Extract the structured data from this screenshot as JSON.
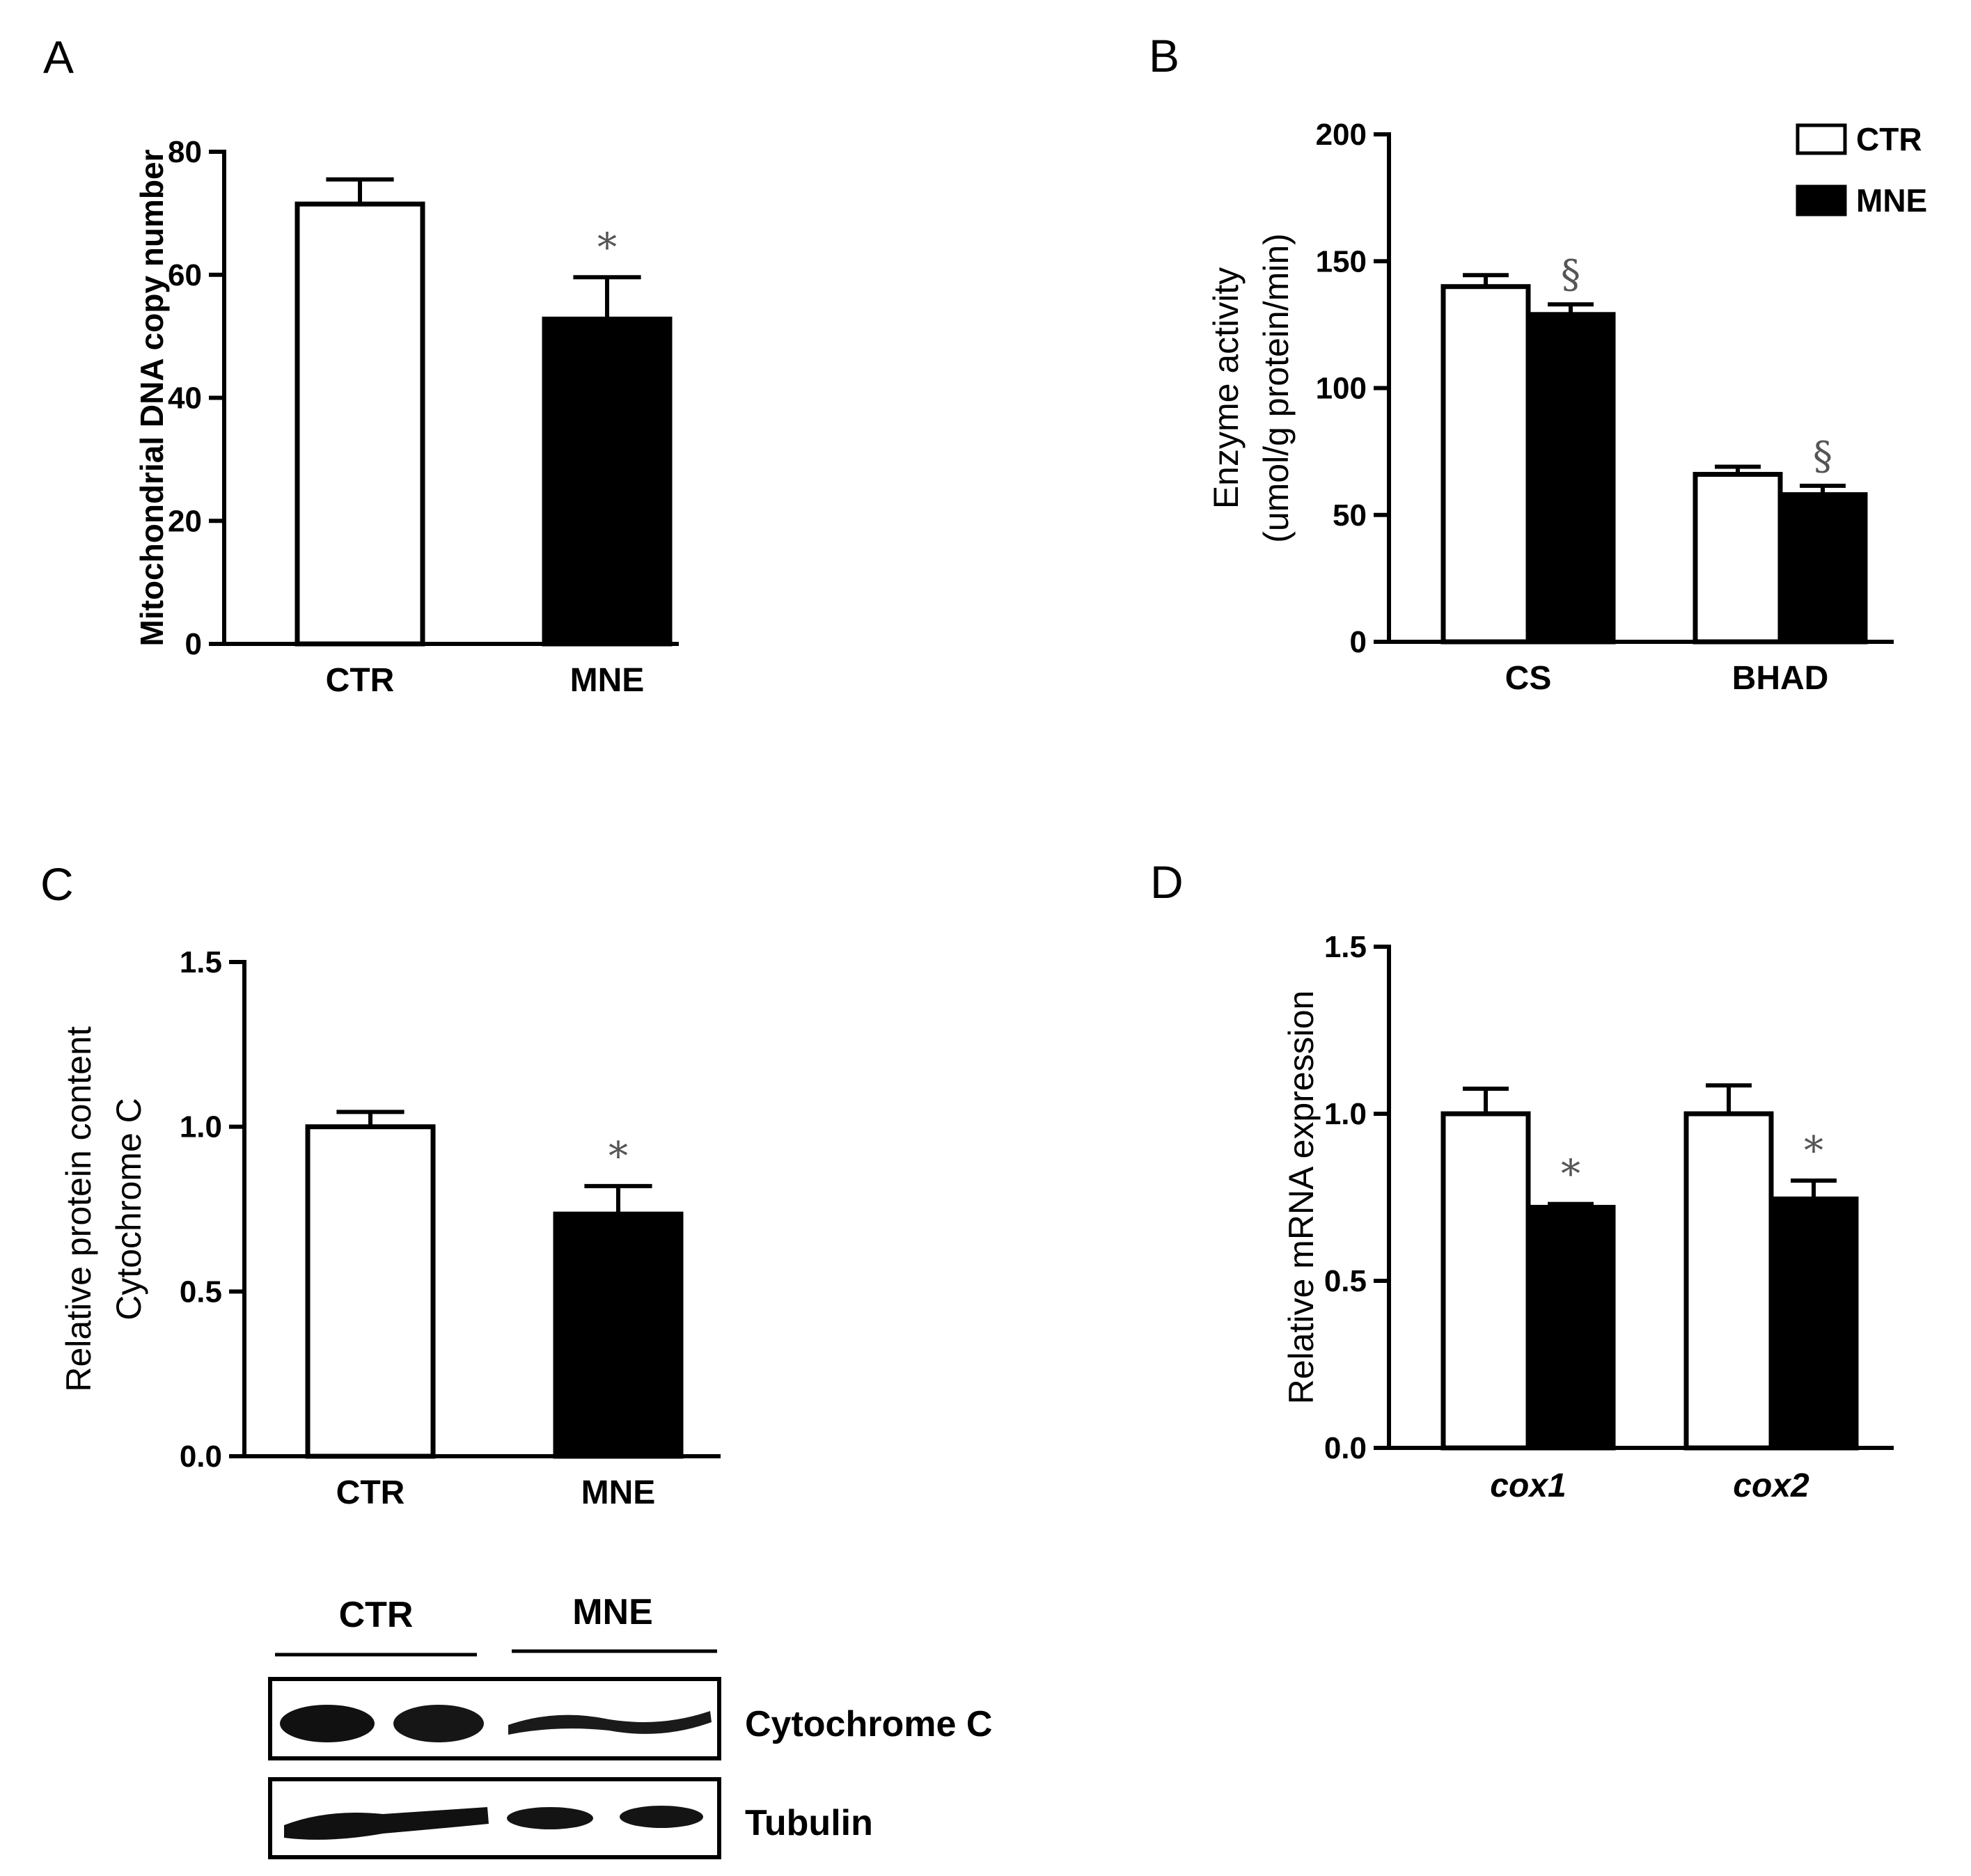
{
  "chart_data": [
    {
      "id": "A",
      "panel_label": "A",
      "type": "bar",
      "categories": [
        "CTR",
        "MNE"
      ],
      "values": [
        71.5,
        52.8
      ],
      "errors": [
        4.0,
        6.8
      ],
      "fills": [
        "#ffffff",
        "#000000"
      ],
      "significance": [
        "",
        "*"
      ],
      "ylabel": [
        "Mitochondrial DNA copy number"
      ],
      "ylim": [
        0,
        80
      ],
      "yticks": [
        0,
        20,
        40,
        60,
        80
      ],
      "ytick_labels": [
        "0",
        "20",
        "40",
        "60",
        "80"
      ],
      "grid": false
    },
    {
      "id": "B",
      "panel_label": "B",
      "type": "bar",
      "categories": [
        "CS",
        "BHAD"
      ],
      "series": [
        {
          "name": "CTR",
          "values": [
            140,
            66
          ],
          "errors": [
            4.5,
            3.0
          ],
          "fill": "#ffffff",
          "significance": [
            "",
            ""
          ]
        },
        {
          "name": "MNE",
          "values": [
            129,
            58
          ],
          "errors": [
            4.0,
            3.5
          ],
          "fill": "#000000",
          "significance": [
            "§",
            "§"
          ]
        }
      ],
      "ylabel": [
        "Enzyme activity",
        "(umol/g protein/min)"
      ],
      "ylim": [
        0,
        200
      ],
      "yticks": [
        0,
        50,
        100,
        150,
        200
      ],
      "ytick_labels": [
        "0",
        "50",
        "100",
        "150",
        "200"
      ],
      "legend": "top-right",
      "grid": false
    },
    {
      "id": "C",
      "panel_label": "C",
      "type": "bar",
      "categories": [
        "CTR",
        "MNE"
      ],
      "values": [
        1.0,
        0.735
      ],
      "errors": [
        0.045,
        0.085
      ],
      "fills": [
        "#ffffff",
        "#000000"
      ],
      "significance": [
        "",
        "*"
      ],
      "ylabel": [
        "Relative protein content",
        "Cytochrome C"
      ],
      "ylim": [
        0,
        1.5
      ],
      "yticks": [
        0,
        0.5,
        1.0,
        1.5
      ],
      "ytick_labels": [
        "0.0",
        "0.5",
        "1.0",
        "1.5"
      ],
      "grid": false
    },
    {
      "id": "D",
      "panel_label": "D",
      "type": "bar",
      "categories": [
        "cox1",
        "cox2"
      ],
      "series": [
        {
          "name": "CTR",
          "values": [
            1.0,
            1.0
          ],
          "errors": [
            0.075,
            0.085
          ],
          "fill": "#ffffff",
          "significance": [
            "",
            ""
          ]
        },
        {
          "name": "MNE",
          "values": [
            0.72,
            0.745
          ],
          "errors": [
            0.01,
            0.055
          ],
          "fill": "#000000",
          "significance": [
            "*",
            "*"
          ]
        }
      ],
      "ylabel": [
        "Relative mRNA expression"
      ],
      "ylim": [
        0,
        1.5
      ],
      "yticks": [
        0,
        0.5,
        1.0,
        1.5
      ],
      "ytick_labels": [
        "0.0",
        "0.5",
        "1.0",
        "1.5"
      ],
      "grid": false
    }
  ],
  "blot": {
    "groups": [
      "CTR",
      "MNE"
    ],
    "rows": [
      "Cytochrome C",
      "Tubulin"
    ]
  }
}
